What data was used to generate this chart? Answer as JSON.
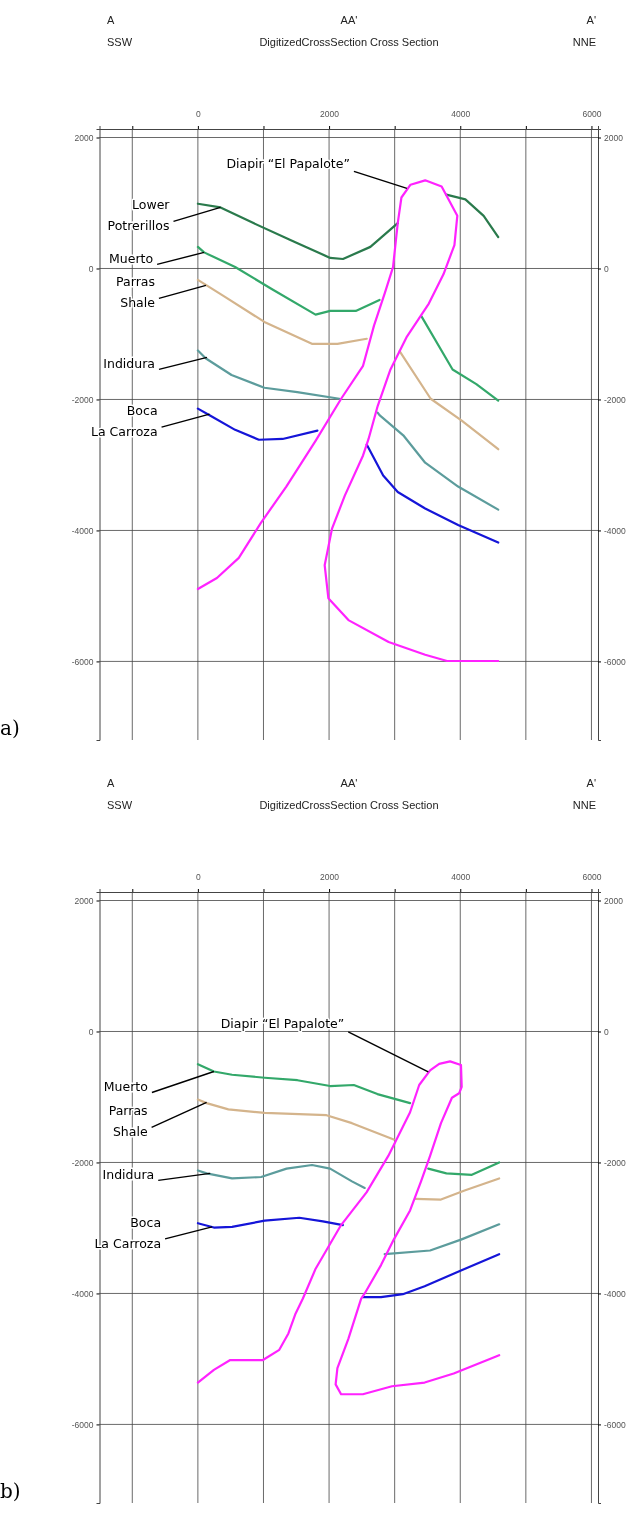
{
  "chart_data": [
    {
      "type": "line",
      "title": "AA'",
      "subtitle": "DigitizedCrossSection Cross Section",
      "xlim": [
        -1500,
        6100
      ],
      "ylim": [
        -7200,
        2130
      ],
      "y2lim": [
        -7200,
        2130
      ],
      "xticks": [
        {
          "value": -1000,
          "label": null
        },
        0,
        {
          "value": 1000,
          "label": null
        },
        2000,
        {
          "value": 3000,
          "label": null
        },
        4000,
        {
          "value": 5000,
          "label": null
        },
        6000
      ],
      "yticks": [
        2000,
        0,
        -2000,
        -4000,
        -6000
      ],
      "y2ticks": [
        2000,
        0,
        -2000,
        -4000,
        -6000
      ],
      "grid": true,
      "series": [
        {
          "color": "#2a7a4c",
          "x": [
            0,
            345,
            847,
            1460,
            2017,
            2212,
            2630,
            3047,
            3300,
            3788,
            4078,
            4357,
            4579
          ],
          "values": [
            989,
            933,
            693,
            413,
            162,
            145,
            330,
            693,
            null,
            1128,
            1056,
            804,
            480
          ]
        },
        {
          "color": "#33a86a",
          "x": [
            0,
            95,
            568,
            1125,
            1794,
            2017,
            2407,
            2769,
            3000,
            3409,
            3883,
            4245,
            4579
          ],
          "values": [
            330,
            246,
            22,
            -313,
            -704,
            -648,
            -648,
            -480,
            null,
            -732,
            -1542,
            -1765,
            -2017
          ]
        },
        {
          "color": "#d4b48c",
          "x": [
            0,
            401,
            1014,
            1738,
            2128,
            2574,
            2800,
            3075,
            3549,
            4022,
            4579
          ],
          "values": [
            -173,
            -425,
            -816,
            -1151,
            -1151,
            -1073,
            null,
            -1263,
            -1989,
            -2324,
            -2760
          ]
        },
        {
          "color": "#5c9c9c",
          "x": [
            0,
            123,
            513,
            1014,
            1515,
            2156,
            2400,
            2741,
            2769,
            3131,
            3465,
            3967,
            4579
          ],
          "values": [
            -1251,
            -1374,
            -1626,
            -1821,
            -1888,
            -1989,
            null,
            -2201,
            -2240,
            -2547,
            -2966,
            -3330,
            -3682
          ]
        },
        {
          "color": "#1515d8",
          "x": [
            0,
            178,
            568,
            930,
            1292,
            1822,
            2200,
            2574,
            2825,
            3047,
            3465,
            3967,
            4579
          ],
          "values": [
            -2140,
            -2240,
            -2464,
            -2615,
            -2603,
            -2475,
            null,
            -2687,
            -3162,
            -3413,
            -3665,
            -3916,
            -4184
          ]
        },
        {
          "color": "#ff22ff",
          "x": [
            0,
            290,
            624,
            958,
            1348,
            1794,
            2184,
            2518,
            2685,
            2852,
            2975,
            3047,
            3103,
            3242,
            3465,
            3716,
            3955,
            3911,
            3744,
            3521,
            3187,
            2936,
            2741,
            2602,
            2518,
            2240,
            2045,
            1933,
            1989,
            2295,
            2908,
            3465,
            3799,
            4579
          ],
          "values": [
            -4894,
            -4726,
            -4419,
            -3888,
            -3330,
            -2631,
            -1989,
            -1486,
            -872,
            -369,
            22,
            693,
            1084,
            1279,
            1346,
            1251,
            804,
            358,
            -89,
            -536,
            -1039,
            -1542,
            -2101,
            -2603,
            -2855,
            -3469,
            -3972,
            -4531,
            -5034,
            -5369,
            -5704,
            -5899,
            -5994,
            -5994
          ]
        }
      ],
      "annotations": [
        "A",
        "SSW",
        "A'",
        "NNE",
        "a)",
        {
          "text": "Diapir “El Papalote”",
          "x": 3187,
          "y": 1223
        },
        {
          "text": "Lower\nPotrerillos",
          "x": 345,
          "y": 933
        },
        {
          "text": "Muerto",
          "x": 95,
          "y": 246
        },
        {
          "text": "Parras\nShale",
          "x": 123,
          "y": -257
        },
        {
          "text": "Indidura",
          "x": 139,
          "y": -1358
        },
        {
          "text": "Boca\nLa Carroza",
          "x": 178,
          "y": -2223
        }
      ]
    },
    {
      "type": "line",
      "title": "AA'",
      "subtitle": "DigitizedCrossSection Cross Section",
      "xlim": [
        -1500,
        6100
      ],
      "ylim": [
        -7200,
        2130
      ],
      "y2lim": [
        -7200,
        2130
      ],
      "xticks": [
        {
          "value": -1000,
          "label": null
        },
        0,
        {
          "value": 1000,
          "label": null
        },
        2000,
        {
          "value": 3000,
          "label": null
        },
        4000,
        {
          "value": 5000,
          "label": null
        },
        6000
      ],
      "yticks": [
        2000,
        0,
        -2000,
        -4000,
        -6000
      ],
      "y2ticks": [
        2000,
        0,
        -2000,
        -4000,
        -6000
      ],
      "grid": true,
      "series": [
        {
          "color": "#33a86a",
          "x": [
            0,
            244,
            521,
            1019,
            1518,
            2016,
            2377,
            2737,
            3235,
            3400,
            3512,
            3789,
            4177,
            4593
          ],
          "values": [
            -500,
            -611,
            -661,
            -706,
            -744,
            -833,
            -817,
            -956,
            -1094,
            null,
            -2094,
            -2167,
            -2189,
            -2000
          ]
        },
        {
          "color": "#d4b48c",
          "x": [
            0,
            133,
            465,
            1019,
            1961,
            2349,
            2986,
            3150,
            3319,
            3706,
            4066,
            4593
          ],
          "values": [
            -1039,
            -1094,
            -1189,
            -1244,
            -1278,
            -1400,
            -1650,
            null,
            -2556,
            -2567,
            -2428,
            -2244
          ]
        },
        {
          "color": "#5c9c9c",
          "x": [
            0,
            133,
            521,
            964,
            1352,
            1740,
            2016,
            2349,
            2543,
            2700,
            2848,
            3540,
            4011,
            4593
          ],
          "values": [
            -2122,
            -2167,
            -2244,
            -2222,
            -2094,
            -2039,
            -2094,
            -2289,
            -2389,
            null,
            -3400,
            -3344,
            -3178,
            -2944
          ]
        },
        {
          "color": "#1515d8",
          "x": [
            0,
            244,
            521,
            1019,
            1546,
            1906,
            2210,
            2400,
            2515,
            2792,
            3125,
            3457,
            4011,
            4593
          ],
          "values": [
            -2928,
            -2994,
            -2983,
            -2889,
            -2844,
            -2900,
            -2956,
            null,
            -4056,
            -4056,
            -4011,
            -3889,
            -3650,
            -3400
          ]
        },
        {
          "color": "#ff22ff",
          "x": [
            0,
            244,
            493,
            992,
            1241,
            1380,
            1490,
            1601,
            1795,
            2183,
            2571,
            2903,
            3235,
            3374,
            3540,
            3679,
            3845,
            4011,
            4022,
            3983,
            3873,
            3706,
            3540,
            3402,
            3235,
            2986,
            2792,
            2543,
            2488,
            2294,
            2127,
            2100,
            2183,
            2515,
            2959,
            3457,
            3900,
            4593
          ],
          "values": [
            -5361,
            -5167,
            -5017,
            -5017,
            -4861,
            -4611,
            -4306,
            -4078,
            -3622,
            -2956,
            -2456,
            -1900,
            -1233,
            -817,
            -594,
            -494,
            -456,
            -511,
            -844,
            -944,
            -1011,
            -1400,
            -1900,
            -2289,
            -2733,
            -3178,
            -3567,
            -4000,
            -4083,
            -4694,
            -5139,
            -5389,
            -5539,
            -5539,
            -5417,
            -5361,
            -5222,
            -4944
          ]
        }
      ],
      "annotations": [
        "A",
        "SSW",
        "A'",
        "NNE",
        "b)",
        {
          "text": "Diapir “El Papalote”",
          "x": 3512,
          "y": -615
        },
        {
          "text": "Muerto",
          "x": 244,
          "y": -611
        },
        {
          "text": "Parras\nShale",
          "x": 133,
          "y": -1083
        },
        {
          "text": "Indidura",
          "x": 188,
          "y": -2167
        },
        {
          "text": "Boca\nLa Carroza",
          "x": 216,
          "y": -2983
        }
      ]
    }
  ]
}
